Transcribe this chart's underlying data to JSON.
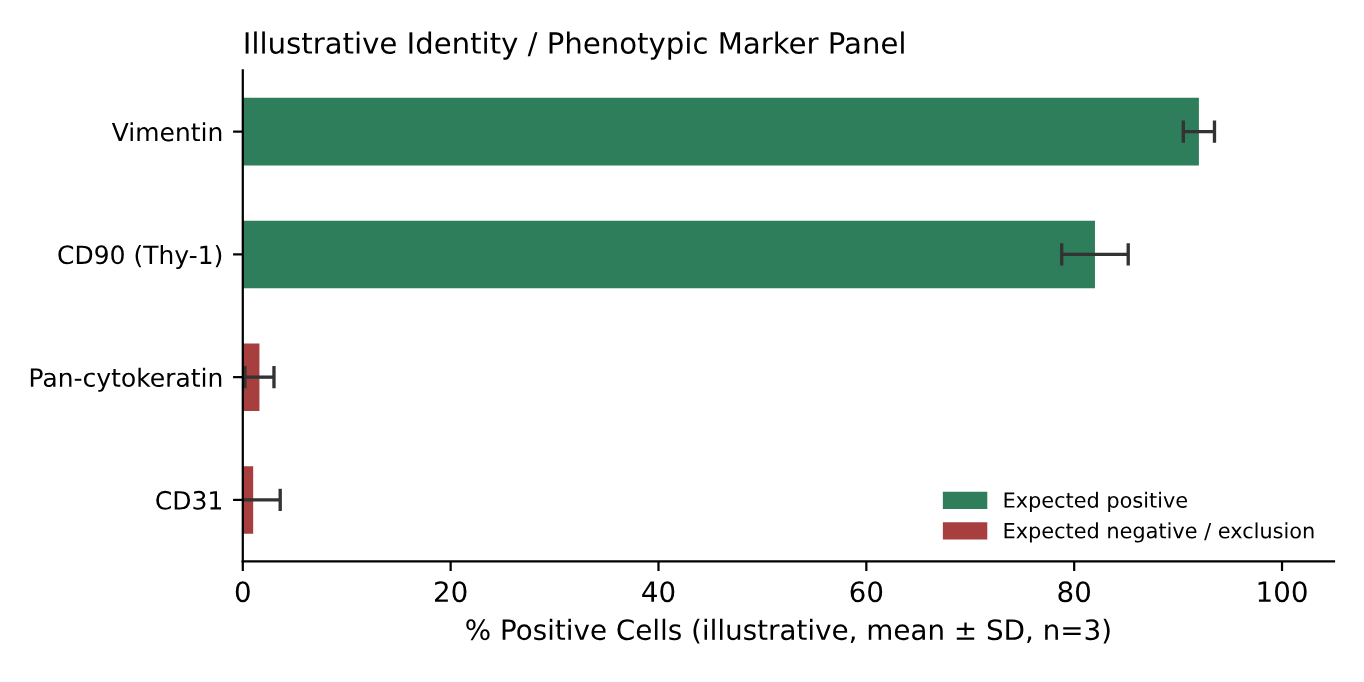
{
  "chart_data": {
    "type": "bar",
    "orientation": "horizontal",
    "title": "Illustrative Identity / Phenotypic Marker Panel",
    "xlabel": "% Positive Cells (illustrative, mean ± SD, n=3)",
    "categories": [
      "Vimentin",
      "CD90 (Thy-1)",
      "Pan-cytokeratin",
      "CD31"
    ],
    "series": [
      {
        "name": "Expected positive",
        "color": "#2e7d5b",
        "values": [
          92,
          82,
          null,
          null
        ],
        "errors": [
          1.5,
          3.2,
          null,
          null
        ]
      },
      {
        "name": "Expected negative / exclusion",
        "color": "#a83f3f",
        "values": [
          null,
          null,
          1.6,
          1.0
        ],
        "errors": [
          null,
          null,
          1.4,
          2.6
        ]
      }
    ],
    "xlim": [
      0,
      105
    ],
    "xticks": [
      0,
      20,
      40,
      60,
      80,
      100
    ],
    "grid": false,
    "legend": "bottom right"
  }
}
